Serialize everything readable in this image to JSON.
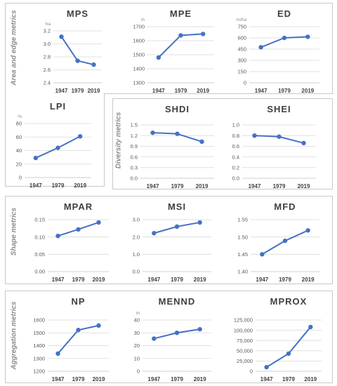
{
  "groups": [
    {
      "label": "Area and edge metrics"
    },
    {
      "label": "Diversity metrics"
    },
    {
      "label": "Shape metrics"
    },
    {
      "label": "Aggregation metrics"
    }
  ],
  "colors": {
    "line": "#4472c4",
    "grid": "#d9d9d9",
    "axis": "#bfbfbf",
    "box": "#c8c8c8"
  },
  "chart_data": [
    {
      "type": "line",
      "title": "MPS",
      "unit": "ha",
      "categories": [
        "1947",
        "1979",
        "2019"
      ],
      "values": [
        3.11,
        2.74,
        2.68
      ],
      "ylim": [
        2.4,
        3.2
      ],
      "yticks": [
        "2.4",
        "2.6",
        "2.8",
        "3.0",
        "3.2"
      ]
    },
    {
      "type": "line",
      "title": "MPE",
      "unit": "m",
      "categories": [
        "1947",
        "1979",
        "2019"
      ],
      "values": [
        1480,
        1638,
        1648
      ],
      "ylim": [
        1300,
        1700
      ],
      "yticks": [
        "1300",
        "1400",
        "1500",
        "1600",
        "1700"
      ]
    },
    {
      "type": "line",
      "title": "ED",
      "unit": "m/ha",
      "categories": [
        "1947",
        "1979",
        "2019"
      ],
      "values": [
        475,
        600,
        615
      ],
      "ylim": [
        0,
        750
      ],
      "yticks": [
        "0",
        "150",
        "300",
        "450",
        "600",
        "750"
      ]
    },
    {
      "type": "line",
      "title": "LPI",
      "unit": "%",
      "categories": [
        "1947",
        "1979",
        "2019"
      ],
      "values": [
        29,
        44,
        61
      ],
      "ylim": [
        0,
        80
      ],
      "yticks": [
        "0",
        "20",
        "40",
        "60",
        "80"
      ]
    },
    {
      "type": "line",
      "title": "SHDI",
      "unit": "",
      "categories": [
        "1947",
        "1979",
        "2019"
      ],
      "values": [
        1.28,
        1.25,
        1.03
      ],
      "ylim": [
        0,
        1.5
      ],
      "yticks": [
        "0.0",
        "0.3",
        "0.6",
        "0.9",
        "1.2",
        "1.5"
      ]
    },
    {
      "type": "line",
      "title": "SHEI",
      "unit": "",
      "categories": [
        "1947",
        "1979",
        "2019"
      ],
      "values": [
        0.8,
        0.78,
        0.66
      ],
      "ylim": [
        0,
        1.0
      ],
      "yticks": [
        "0.0",
        "0.2",
        "0.4",
        "0.6",
        "0.8",
        "1.0"
      ]
    },
    {
      "type": "line",
      "title": "MPAR",
      "unit": "",
      "categories": [
        "1947",
        "1979",
        "2019"
      ],
      "values": [
        0.103,
        0.122,
        0.142
      ],
      "ylim": [
        0,
        0.15
      ],
      "yticks": [
        "0.00",
        "0.05",
        "0.10",
        "0.15"
      ]
    },
    {
      "type": "line",
      "title": "MSI",
      "unit": "",
      "categories": [
        "1947",
        "1979",
        "2019"
      ],
      "values": [
        2.22,
        2.6,
        2.84
      ],
      "ylim": [
        0,
        3.0
      ],
      "yticks": [
        "0.0",
        "1.0",
        "2.0",
        "3.0"
      ]
    },
    {
      "type": "line",
      "title": "MFD",
      "unit": "",
      "categories": [
        "1947",
        "1979",
        "2019"
      ],
      "values": [
        1.45,
        1.489,
        1.519
      ],
      "ylim": [
        1.4,
        1.55
      ],
      "yticks": [
        "1.40",
        "1.45",
        "1.50",
        "1.55"
      ]
    },
    {
      "type": "line",
      "title": "NP",
      "unit": "",
      "categories": [
        "1947",
        "1979",
        "2019"
      ],
      "values": [
        1338,
        1522,
        1557
      ],
      "ylim": [
        1200,
        1600
      ],
      "yticks": [
        "1200",
        "1300",
        "1400",
        "1500",
        "1600"
      ]
    },
    {
      "type": "line",
      "title": "MENND",
      "unit": "m",
      "categories": [
        "1947",
        "1979",
        "2019"
      ],
      "values": [
        25.5,
        30,
        32.8
      ],
      "ylim": [
        0,
        40
      ],
      "yticks": [
        "0",
        "10",
        "20",
        "30",
        "40"
      ]
    },
    {
      "type": "line",
      "title": "MPROX",
      "unit": "",
      "categories": [
        "1947",
        "1979",
        "2019"
      ],
      "values": [
        10000,
        43000,
        108000
      ],
      "ylim": [
        0,
        125000
      ],
      "yticks": [
        "0",
        "25,000",
        "50,000",
        "75,000",
        "100,000",
        "125,000"
      ]
    }
  ]
}
